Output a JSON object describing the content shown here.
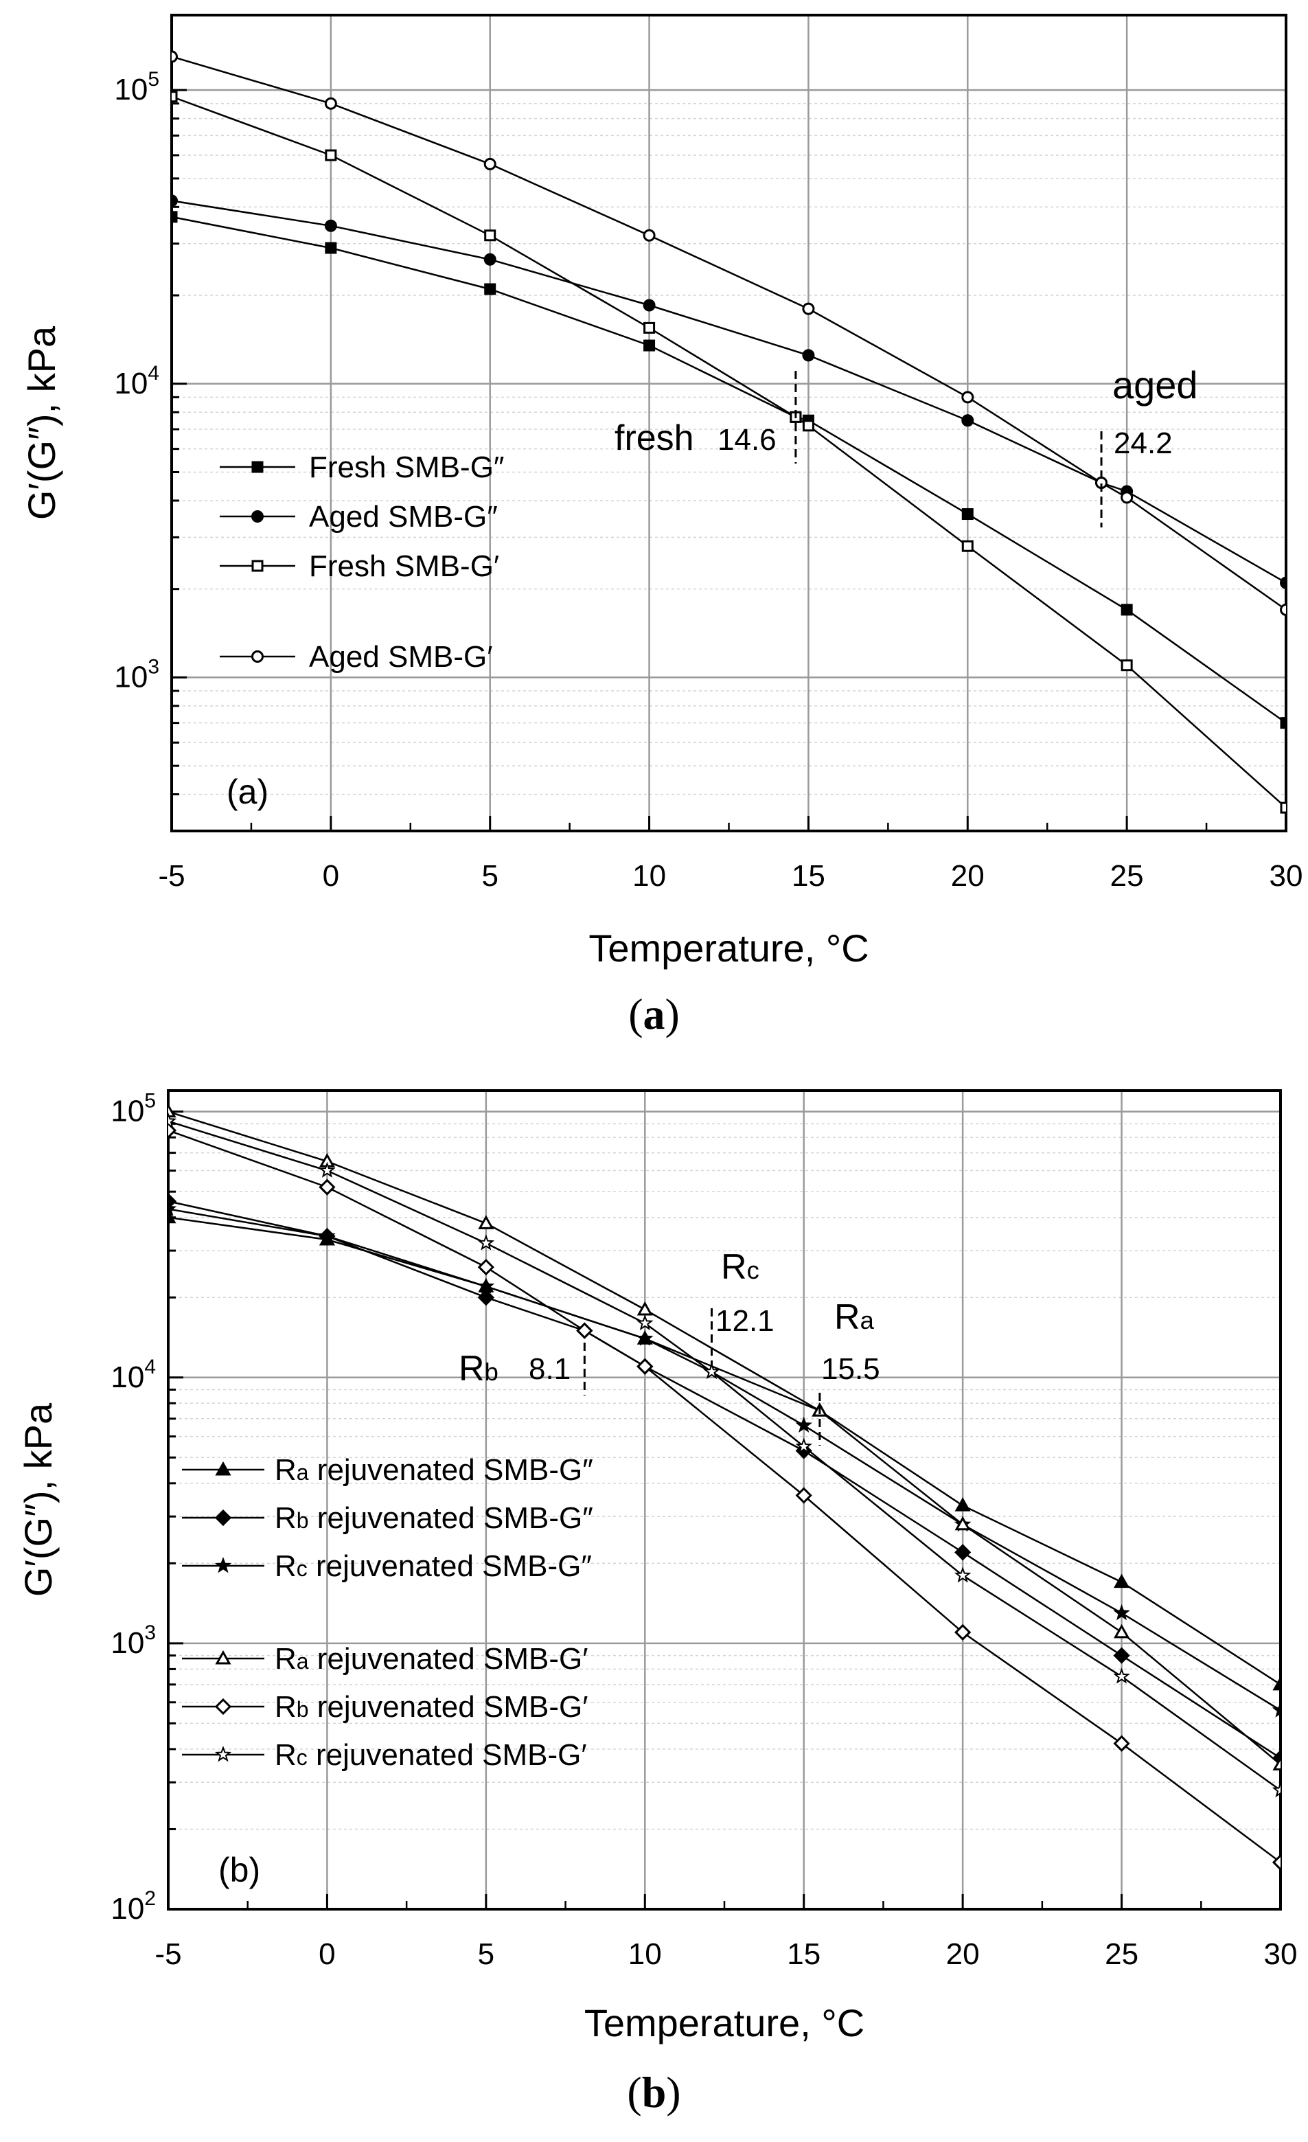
{
  "figure": {
    "caption_a": {
      "open": "(",
      "letter": "a",
      "close": ")"
    },
    "caption_b": {
      "open": "(",
      "letter": "b",
      "close": ")"
    }
  },
  "chart_data": [
    {
      "type": "line",
      "panel_label": "(a)",
      "title": "",
      "xlabel": "Temperature, °C",
      "ylabel": "G′(G″), kPa",
      "xlim": [
        -5,
        30
      ],
      "ylim": [
        300,
        180000
      ],
      "yscale": "log",
      "grid": true,
      "xticks": [
        "-5",
        "0",
        "5",
        "10",
        "15",
        "20",
        "25",
        "30"
      ],
      "yticks": [
        {
          "base": "10",
          "exp": "3",
          "value": 1000
        },
        {
          "base": "10",
          "exp": "4",
          "value": 10000
        },
        {
          "base": "10",
          "exp": "5",
          "value": 100000
        }
      ],
      "legend_position": "left-middle",
      "series": [
        {
          "name": "Fresh SMB-G″",
          "marker": "square-filled",
          "x": [
            -5,
            0,
            5,
            10,
            14.6,
            15,
            20,
            25,
            30
          ],
          "values": [
            37000,
            29000,
            21000,
            13500,
            7700,
            7500,
            3600,
            1700,
            700
          ]
        },
        {
          "name": "Aged SMB-G″",
          "marker": "circle-filled",
          "x": [
            -5,
            0,
            5,
            10,
            15,
            20,
            24.2,
            25,
            30
          ],
          "values": [
            42000,
            34500,
            26500,
            18500,
            12500,
            7500,
            4600,
            4300,
            2100
          ]
        },
        {
          "name": "Fresh SMB-G′",
          "marker": "square-open",
          "x": [
            -5,
            0,
            5,
            10,
            14.6,
            15,
            20,
            25,
            30
          ],
          "values": [
            95000,
            60000,
            32000,
            15500,
            7700,
            7200,
            2800,
            1100,
            360
          ]
        },
        {
          "name": "Aged SMB-G′",
          "marker": "circle-open",
          "x": [
            -5,
            0,
            5,
            10,
            15,
            20,
            24.2,
            25,
            30
          ],
          "values": [
            130000,
            90000,
            56000,
            32000,
            18000,
            9000,
            4600,
            4100,
            1700
          ]
        }
      ],
      "annotations": [
        {
          "label": "fresh",
          "value_text": "14.6",
          "x": 14.6
        },
        {
          "label": "aged",
          "value_text": "24.2",
          "x": 24.2
        }
      ]
    },
    {
      "type": "line",
      "panel_label": "(b)",
      "title": "",
      "xlabel": "Temperature, °C",
      "ylabel": "G′(G″), kPa",
      "xlim": [
        -5,
        30
      ],
      "ylim": [
        100,
        120000
      ],
      "yscale": "log",
      "grid": true,
      "xticks": [
        "-5",
        "0",
        "5",
        "10",
        "15",
        "20",
        "25",
        "30"
      ],
      "yticks": [
        {
          "base": "10",
          "exp": "2",
          "value": 100
        },
        {
          "base": "10",
          "exp": "3",
          "value": 1000
        },
        {
          "base": "10",
          "exp": "4",
          "value": 10000
        },
        {
          "base": "10",
          "exp": "5",
          "value": 100000
        }
      ],
      "legend_position": "left-middle",
      "series": [
        {
          "name": "Ra rejuvenated SMB-G″",
          "sub": "a",
          "rest": " rejuvenated SMB-G″",
          "marker": "triangle-filled",
          "x": [
            -5,
            0,
            5,
            10,
            15.5,
            20,
            25,
            30
          ],
          "values": [
            40000,
            33000,
            22000,
            14000,
            7500,
            3300,
            1700,
            700
          ]
        },
        {
          "name": "Rb rejuvenated SMB-G″",
          "sub": "b",
          "rest": " rejuvenated SMB-G″",
          "marker": "diamond-filled",
          "x": [
            -5,
            0,
            5,
            8.1,
            10,
            15,
            20,
            25,
            30
          ],
          "values": [
            46000,
            34000,
            20000,
            15000,
            11000,
            5300,
            2200,
            900,
            370
          ]
        },
        {
          "name": "Rc rejuvenated SMB-G″",
          "sub": "c",
          "rest": " rejuvenated SMB-G″",
          "marker": "star-filled",
          "x": [
            -5,
            0,
            5,
            10,
            12.1,
            15,
            20,
            25,
            30
          ],
          "values": [
            43000,
            34000,
            22000,
            14000,
            10500,
            6600,
            2800,
            1300,
            560
          ]
        },
        {
          "name": "Ra rejuvenated SMB-G′",
          "sub": "a",
          "rest": " rejuvenated SMB-G′",
          "marker": "triangle-open",
          "x": [
            -5,
            0,
            5,
            10,
            15.5,
            20,
            25,
            30
          ],
          "values": [
            100000,
            65000,
            38000,
            18000,
            7500,
            2800,
            1100,
            350
          ]
        },
        {
          "name": "Rb rejuvenated SMB-G′",
          "sub": "b",
          "rest": " rejuvenated SMB-G′",
          "marker": "diamond-open",
          "x": [
            -5,
            0,
            5,
            8.1,
            10,
            15,
            20,
            25,
            30
          ],
          "values": [
            85000,
            52000,
            26000,
            15000,
            11000,
            3600,
            1100,
            420,
            150
          ]
        },
        {
          "name": "Rc rejuvenated SMB-G′",
          "sub": "c",
          "rest": " rejuvenated SMB-G′",
          "marker": "star-open",
          "x": [
            -5,
            0,
            5,
            10,
            12.1,
            15,
            20,
            25,
            30
          ],
          "values": [
            92000,
            60000,
            32000,
            16000,
            10500,
            5500,
            1800,
            750,
            280
          ]
        }
      ],
      "annotations": [
        {
          "label": "R",
          "sub": "b",
          "value_text": "8.1",
          "x": 8.1
        },
        {
          "label": "R",
          "sub": "c",
          "value_text": "12.1",
          "x": 12.1
        },
        {
          "label": "R",
          "sub": "a",
          "value_text": "15.5",
          "x": 15.5
        }
      ]
    }
  ]
}
